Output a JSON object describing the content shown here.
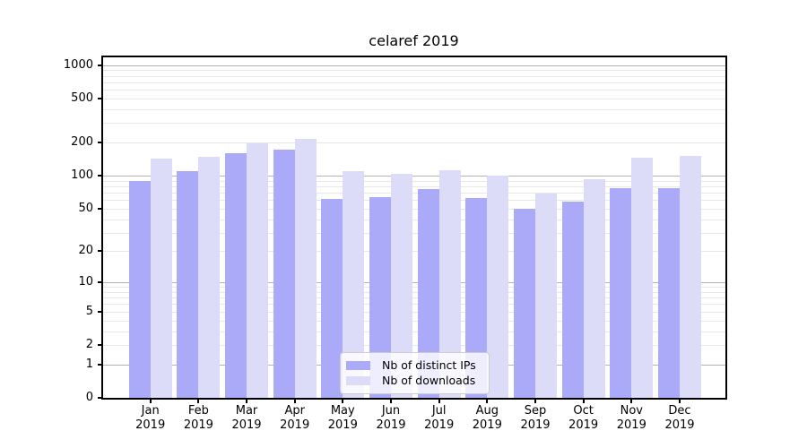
{
  "chart_data": {
    "type": "bar",
    "title": "celaref 2019",
    "y_scale": "log10(value+1)",
    "ylim": [
      0,
      1200
    ],
    "grid": "on",
    "legend_position": "bottom-center-inside",
    "categories": [
      "Jan 2019",
      "Feb 2019",
      "Mar 2019",
      "Apr 2019",
      "May 2019",
      "Jun 2019",
      "Jul 2019",
      "Aug 2019",
      "Sep 2019",
      "Oct 2019",
      "Nov 2019",
      "Dec 2019"
    ],
    "series": [
      {
        "name": "Nb of distinct IPs",
        "color": "#aaaaf8",
        "values": [
          90,
          110,
          161,
          174,
          61,
          64,
          75,
          62,
          50,
          58,
          77,
          77
        ]
      },
      {
        "name": "Nb of downloads",
        "color": "#dcdcf8",
        "values": [
          143,
          149,
          198,
          215,
          110,
          104,
          113,
          101,
          69,
          93,
          146,
          150
        ]
      }
    ],
    "y_ticks": [
      0,
      1,
      2,
      5,
      10,
      20,
      50,
      100,
      200,
      500,
      1000
    ],
    "y_major_gridlines": [
      1,
      10,
      100,
      1000
    ],
    "y_minor_gridlines": [
      2,
      3,
      4,
      5,
      6,
      7,
      8,
      9,
      20,
      30,
      40,
      50,
      60,
      70,
      80,
      90,
      200,
      300,
      400,
      500,
      600,
      700,
      800,
      900
    ]
  },
  "colors": {
    "background": "#ffffff",
    "axis": "#000000",
    "major_grid": "#b2b2b2",
    "minor_grid": "#e8e8e8",
    "legend_border": "#cccccc",
    "text": "#000000"
  }
}
